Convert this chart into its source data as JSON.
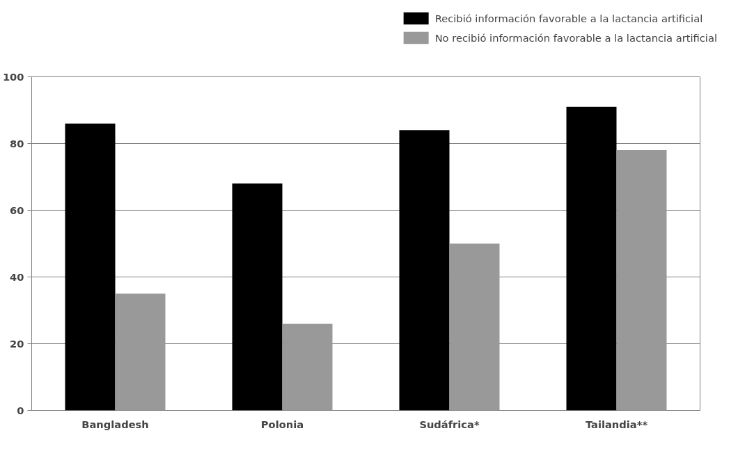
{
  "chart_data": {
    "type": "bar",
    "categories": [
      "Bangladesh",
      "Polonia",
      "Sudáfrica*",
      "Tailandia**"
    ],
    "series": [
      {
        "name": "Recibió información favorable a la lactancia artificial",
        "color": "#000000",
        "values": [
          86,
          68,
          84,
          91
        ]
      },
      {
        "name": "No recibió información favorable a la lactancia artificial",
        "color": "#999999",
        "values": [
          35,
          26,
          50,
          78
        ]
      }
    ],
    "ylim": [
      0,
      100
    ],
    "yticks": [
      0,
      20,
      40,
      60,
      80,
      100
    ],
    "grid": "y",
    "legend": "top right"
  }
}
